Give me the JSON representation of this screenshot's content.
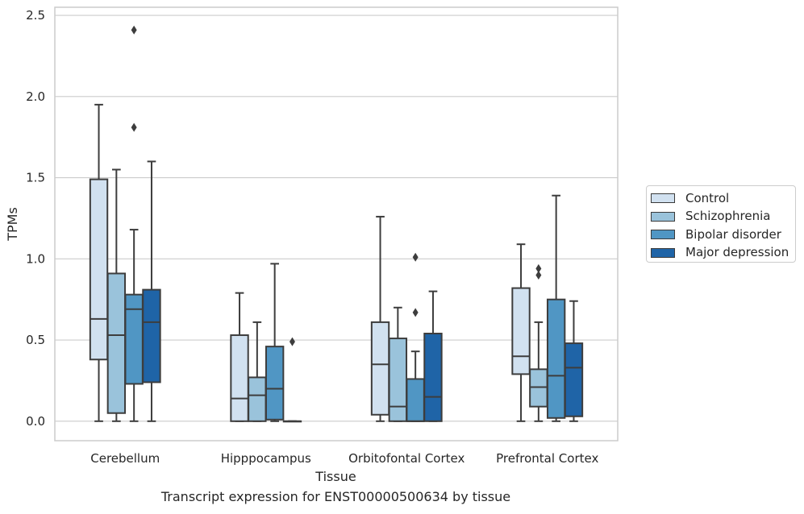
{
  "chart_data": {
    "type": "box",
    "title": "",
    "caption": "Transcript expression for ENST00000500634 by tissue",
    "xlabel": "Tissue",
    "ylabel": "TPMs",
    "ylim": [
      -0.12,
      2.55
    ],
    "yticks": [
      "0.0",
      "0.5",
      "1.0",
      "1.5",
      "2.0",
      "2.5"
    ],
    "ytick_values": [
      0,
      0.5,
      1.0,
      1.5,
      2.0,
      2.5
    ],
    "categories": [
      "Cerebellum",
      "Hipppocampus",
      "Orbitofontal Cortex",
      "Prefrontal Cortex"
    ],
    "grid": "horizontal",
    "legend_position": "right",
    "series": [
      {
        "name": "Control",
        "color": "#d1e1f0",
        "boxes": [
          {
            "whisker_low": 0.0,
            "q1": 0.38,
            "median": 0.63,
            "q3": 1.49,
            "whisker_high": 1.95,
            "outliers": []
          },
          {
            "whisker_low": 0.0,
            "q1": 0.0,
            "median": 0.14,
            "q3": 0.53,
            "whisker_high": 0.79,
            "outliers": []
          },
          {
            "whisker_low": 0.0,
            "q1": 0.04,
            "median": 0.35,
            "q3": 0.61,
            "whisker_high": 1.26,
            "outliers": []
          },
          {
            "whisker_low": 0.0,
            "q1": 0.29,
            "median": 0.4,
            "q3": 0.82,
            "whisker_high": 1.09,
            "outliers": []
          }
        ]
      },
      {
        "name": "Schizophrenia",
        "color": "#9ac3db",
        "boxes": [
          {
            "whisker_low": 0.0,
            "q1": 0.05,
            "median": 0.53,
            "q3": 0.91,
            "whisker_high": 1.55,
            "outliers": []
          },
          {
            "whisker_low": 0.0,
            "q1": 0.0,
            "median": 0.16,
            "q3": 0.27,
            "whisker_high": 0.61,
            "outliers": []
          },
          {
            "whisker_low": 0.0,
            "q1": 0.0,
            "median": 0.09,
            "q3": 0.51,
            "whisker_high": 0.7,
            "outliers": []
          },
          {
            "whisker_low": 0.0,
            "q1": 0.09,
            "median": 0.21,
            "q3": 0.32,
            "whisker_high": 0.61,
            "outliers": [
              0.94,
              0.9
            ]
          }
        ]
      },
      {
        "name": "Bipolar disorder",
        "color": "#5096c4",
        "boxes": [
          {
            "whisker_low": 0.0,
            "q1": 0.23,
            "median": 0.69,
            "q3": 0.78,
            "whisker_high": 1.18,
            "outliers": [
              2.41,
              1.81
            ]
          },
          {
            "whisker_low": 0.0,
            "q1": 0.01,
            "median": 0.2,
            "q3": 0.46,
            "whisker_high": 0.97,
            "outliers": []
          },
          {
            "whisker_low": 0.0,
            "q1": 0.0,
            "median": 0.0,
            "q3": 0.26,
            "whisker_high": 0.43,
            "outliers": [
              1.01,
              0.67
            ]
          },
          {
            "whisker_low": 0.0,
            "q1": 0.02,
            "median": 0.28,
            "q3": 0.75,
            "whisker_high": 1.39,
            "outliers": []
          }
        ]
      },
      {
        "name": "Major depression",
        "color": "#1f64a7",
        "boxes": [
          {
            "whisker_low": 0.0,
            "q1": 0.24,
            "median": 0.61,
            "q3": 0.81,
            "whisker_high": 1.6,
            "outliers": []
          },
          {
            "whisker_low": 0.0,
            "q1": 0.0,
            "median": 0.0,
            "q3": 0.0,
            "whisker_high": 0.0,
            "outliers": [
              0.49
            ]
          },
          {
            "whisker_low": 0.0,
            "q1": 0.0,
            "median": 0.15,
            "q3": 0.54,
            "whisker_high": 0.8,
            "outliers": []
          },
          {
            "whisker_low": 0.0,
            "q1": 0.03,
            "median": 0.33,
            "q3": 0.48,
            "whisker_high": 0.74,
            "outliers": []
          }
        ]
      }
    ]
  }
}
